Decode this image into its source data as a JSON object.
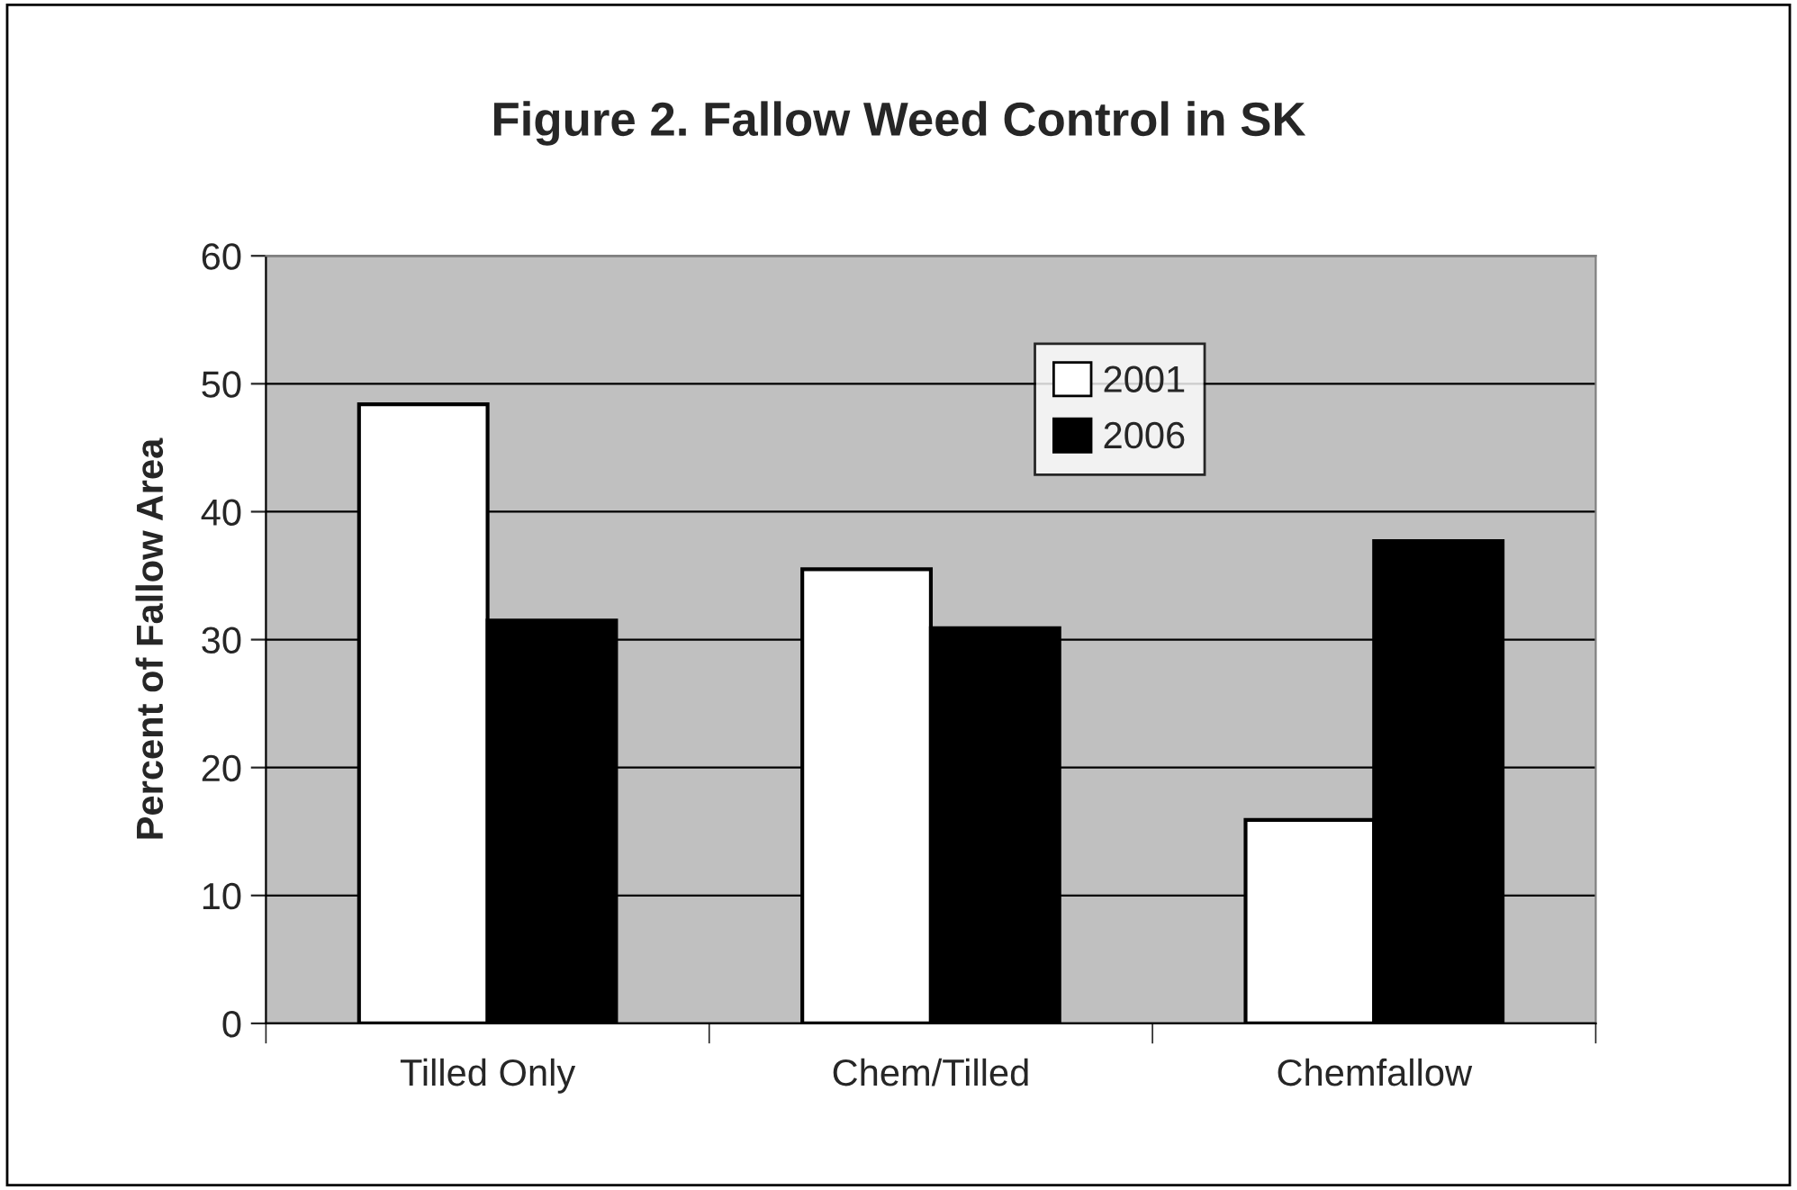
{
  "chart_data": {
    "type": "bar",
    "title": "Figure 2. Fallow Weed Control in SK",
    "ylabel": "Percent of Fallow Area",
    "categories": [
      "Tilled Only",
      "Chem/Tilled",
      "Chemfallow"
    ],
    "series": [
      {
        "name": "2001",
        "color": "#ffffff",
        "values": [
          48.4,
          35.5,
          15.9
        ]
      },
      {
        "name": "2006",
        "color": "#000000",
        "values": [
          31.5,
          30.9,
          37.7
        ]
      }
    ],
    "ylim": [
      0,
      60
    ],
    "yticks": [
      0,
      10,
      20,
      30,
      40,
      50,
      60
    ],
    "grid": "y",
    "legend": "top right"
  }
}
